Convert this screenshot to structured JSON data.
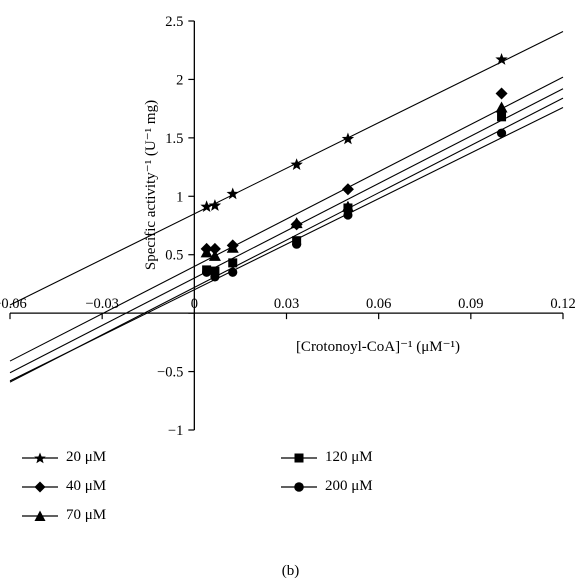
{
  "chart_data": {
    "type": "scatter",
    "xlabel": "[Crotonoyl-CoA]⁻¹ (μM⁻¹)",
    "ylabel": "Specific activity⁻¹ (U⁻¹ mg)",
    "xlim": [
      -0.06,
      0.12
    ],
    "ylim": [
      -1,
      2.5
    ],
    "x_ticks": [
      "−0.06",
      "−0.03",
      "0",
      "0.03",
      "0.06",
      "0.09",
      "0.12"
    ],
    "y_ticks": [
      "2.5",
      "2",
      "1.5",
      "1",
      "0.5",
      "0",
      "−0.5",
      "−1"
    ],
    "y_tick_values": [
      2.5,
      2,
      1.5,
      1,
      0.5,
      0,
      -0.5,
      -1
    ],
    "x_tick_values": [
      -0.06,
      -0.03,
      0,
      0.03,
      0.06,
      0.09,
      0.12
    ],
    "grid": false,
    "legend_position": "bottom-left",
    "series": [
      {
        "name": "20 μM",
        "marker": "star",
        "points": [
          [
            0.004,
            0.91
          ],
          [
            0.0067,
            0.92
          ],
          [
            0.0125,
            1.02
          ],
          [
            0.0333,
            1.27
          ],
          [
            0.05,
            1.49
          ],
          [
            0.1,
            2.17
          ]
        ],
        "fit": {
          "slope": 13.0,
          "intercept": 0.85
        }
      },
      {
        "name": "40 μM",
        "marker": "diamond",
        "points": [
          [
            0.004,
            0.55
          ],
          [
            0.0067,
            0.55
          ],
          [
            0.0125,
            0.58
          ],
          [
            0.0333,
            0.76
          ],
          [
            0.05,
            1.06
          ],
          [
            0.1,
            1.88
          ]
        ],
        "fit": {
          "slope": 13.5,
          "intercept": 0.4
        }
      },
      {
        "name": "70 μM",
        "marker": "triangle",
        "points": [
          [
            0.004,
            0.52
          ],
          [
            0.0067,
            0.49
          ],
          [
            0.0125,
            0.56
          ],
          [
            0.0333,
            0.77
          ],
          [
            0.05,
            0.91
          ],
          [
            0.1,
            1.76
          ]
        ],
        "fit": {
          "slope": 13.5,
          "intercept": 0.3
        }
      },
      {
        "name": "120 μM",
        "marker": "square",
        "points": [
          [
            0.004,
            0.37
          ],
          [
            0.0067,
            0.36
          ],
          [
            0.0125,
            0.43
          ],
          [
            0.0333,
            0.62
          ],
          [
            0.05,
            0.9
          ],
          [
            0.1,
            1.68
          ]
        ],
        "fit": {
          "slope": 13.5,
          "intercept": 0.22
        }
      },
      {
        "name": "200 μM",
        "marker": "circle",
        "points": [
          [
            0.004,
            0.35
          ],
          [
            0.0067,
            0.31
          ],
          [
            0.0125,
            0.35
          ],
          [
            0.0333,
            0.59
          ],
          [
            0.05,
            0.84
          ],
          [
            0.1,
            1.54
          ]
        ],
        "fit": {
          "slope": 13.0,
          "intercept": 0.2
        }
      }
    ],
    "caption": "(b)"
  }
}
